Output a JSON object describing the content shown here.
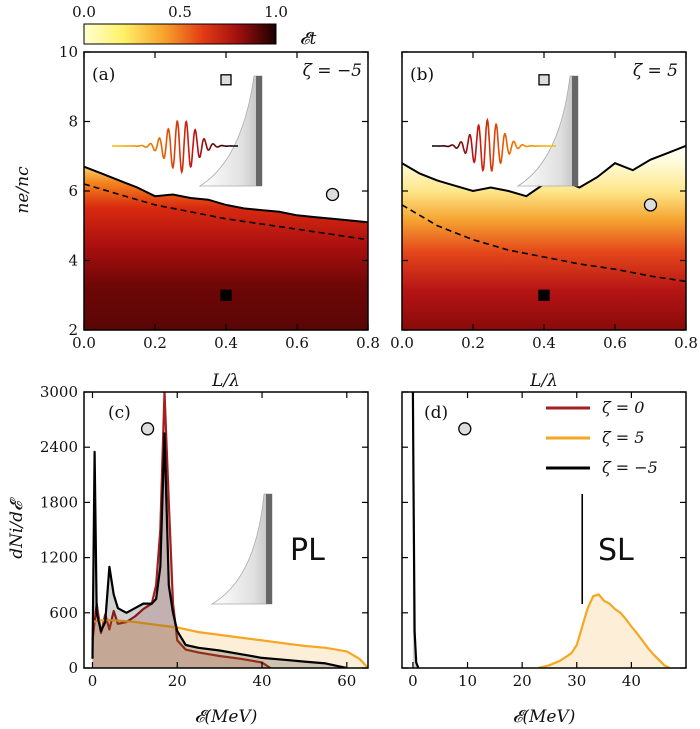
{
  "chart_data": [
    {
      "type": "heatmap",
      "panel_label": "(a)",
      "annotation": "ζ = −5",
      "colorbar": {
        "label": "𝓔t",
        "ticks": [
          "0.0",
          "0.5",
          "1.0"
        ],
        "range": [
          0,
          1
        ]
      },
      "xlabel": "L/λ",
      "ylabel": "ne/nc",
      "xlim": [
        0,
        0.8
      ],
      "ylim": [
        2,
        10
      ],
      "xticks": [
        "0.0",
        "0.2",
        "0.4",
        "0.6",
        "0.8"
      ],
      "yticks": [
        "2",
        "4",
        "6",
        "8",
        "10"
      ],
      "solid_contour": {
        "x": [
          0,
          0.05,
          0.1,
          0.15,
          0.2,
          0.25,
          0.3,
          0.35,
          0.4,
          0.45,
          0.5,
          0.55,
          0.6,
          0.65,
          0.7,
          0.75,
          0.8
        ],
        "y": [
          6.7,
          6.5,
          6.3,
          6.1,
          5.85,
          5.9,
          5.8,
          5.75,
          5.6,
          5.5,
          5.45,
          5.4,
          5.3,
          5.25,
          5.2,
          5.15,
          5.1
        ]
      },
      "dashed_contour": {
        "x": [
          0,
          0.1,
          0.2,
          0.3,
          0.4,
          0.5,
          0.6,
          0.7,
          0.8
        ],
        "y": [
          6.2,
          5.9,
          5.6,
          5.4,
          5.2,
          5.05,
          4.9,
          4.75,
          4.6
        ]
      },
      "markers": [
        {
          "shape": "square",
          "fill": "#dddddd",
          "x": 0.4,
          "y": 9.2
        },
        {
          "shape": "circle",
          "fill": "#dddddd",
          "x": 0.7,
          "y": 5.9
        },
        {
          "shape": "square",
          "fill": "#000000",
          "x": 0.4,
          "y": 3.0
        }
      ]
    },
    {
      "type": "heatmap",
      "panel_label": "(b)",
      "annotation": "ζ = 5",
      "xlabel": "L/λ",
      "xlim": [
        0,
        0.8
      ],
      "ylim": [
        2,
        10
      ],
      "xticks": [
        "0.0",
        "0.2",
        "0.4",
        "0.6",
        "0.8"
      ],
      "solid_contour": {
        "x": [
          0,
          0.05,
          0.1,
          0.15,
          0.2,
          0.25,
          0.3,
          0.35,
          0.4,
          0.45,
          0.5,
          0.55,
          0.6,
          0.65,
          0.7,
          0.75,
          0.8
        ],
        "y": [
          6.8,
          6.5,
          6.3,
          6.15,
          6.0,
          6.1,
          6.0,
          5.85,
          6.2,
          6.3,
          6.1,
          6.4,
          6.8,
          6.6,
          6.9,
          7.1,
          7.3
        ]
      },
      "dashed_contour": {
        "x": [
          0,
          0.1,
          0.2,
          0.3,
          0.4,
          0.5,
          0.6,
          0.7,
          0.8
        ],
        "y": [
          5.6,
          5.0,
          4.6,
          4.3,
          4.1,
          3.9,
          3.75,
          3.55,
          3.4
        ]
      },
      "markers": [
        {
          "shape": "square",
          "fill": "#dddddd",
          "x": 0.4,
          "y": 9.2
        },
        {
          "shape": "circle",
          "fill": "#dddddd",
          "x": 0.7,
          "y": 5.6
        },
        {
          "shape": "square",
          "fill": "#000000",
          "x": 0.4,
          "y": 3.0
        }
      ]
    },
    {
      "type": "line",
      "panel_label": "(c)",
      "annotation": "PL",
      "xlabel": "𝓔(MeV)",
      "ylabel": "dNi/d𝓔",
      "xlim": [
        -2,
        65
      ],
      "ylim": [
        0,
        3000
      ],
      "xticks": [
        "0",
        "20",
        "40",
        "60"
      ],
      "yticks": [
        "0",
        "600",
        "1200",
        "1800",
        "2400",
        "3000"
      ],
      "marker": {
        "shape": "circle",
        "fill": "#dddddd",
        "x": 13,
        "y": 2600
      },
      "series": [
        {
          "name": "ζ = 0",
          "color": "#a32020",
          "x": [
            0,
            1,
            2,
            3,
            4,
            5,
            6,
            8,
            10,
            12,
            14,
            15,
            16,
            17,
            18,
            19,
            20,
            22,
            25,
            30,
            35,
            40,
            42
          ],
          "values": [
            300,
            700,
            380,
            580,
            420,
            620,
            480,
            500,
            560,
            640,
            700,
            900,
            1500,
            3000,
            1800,
            700,
            300,
            200,
            170,
            130,
            100,
            60,
            0
          ]
        },
        {
          "name": "ζ = 5",
          "color": "#f5a623",
          "x": [
            0,
            2,
            5,
            10,
            15,
            20,
            25,
            30,
            35,
            40,
            45,
            50,
            55,
            60,
            63,
            65
          ],
          "values": [
            500,
            520,
            520,
            500,
            470,
            440,
            390,
            360,
            330,
            300,
            270,
            240,
            220,
            180,
            100,
            0
          ]
        },
        {
          "name": "ζ = −5",
          "color": "#000000",
          "x": [
            0,
            0.5,
            1,
            2,
            3,
            4,
            5,
            6,
            8,
            10,
            12,
            14,
            15,
            16,
            17,
            18,
            19,
            20,
            22,
            25,
            30,
            35,
            40,
            45,
            50,
            55,
            58,
            60
          ],
          "values": [
            100,
            2350,
            600,
            400,
            500,
            1100,
            800,
            650,
            600,
            650,
            700,
            700,
            750,
            1100,
            2550,
            900,
            600,
            400,
            250,
            220,
            190,
            150,
            110,
            90,
            70,
            50,
            20,
            0
          ]
        }
      ]
    },
    {
      "type": "line",
      "panel_label": "(d)",
      "annotation": "SL",
      "xlabel": "𝓔(MeV)",
      "xlim": [
        -2,
        50
      ],
      "ylim": [
        0,
        3000
      ],
      "xticks": [
        "0",
        "10",
        "20",
        "30",
        "40"
      ],
      "marker": {
        "shape": "circle",
        "fill": "#dddddd",
        "x": 9.5,
        "y": 2600
      },
      "vline_x": 31,
      "legend": {
        "placement": "top-right"
      },
      "series": [
        {
          "name": "ζ = 0",
          "color": "#a32020",
          "x": [],
          "values": []
        },
        {
          "name": "ζ = 5",
          "color": "#f5a623",
          "x": [
            23,
            25,
            27,
            29,
            30,
            31,
            32,
            33,
            34,
            35,
            36,
            37,
            38,
            39,
            40,
            41,
            42,
            43,
            44,
            45,
            46,
            47
          ],
          "values": [
            0,
            30,
            80,
            160,
            250,
            450,
            650,
            780,
            800,
            730,
            700,
            640,
            600,
            530,
            450,
            380,
            300,
            220,
            150,
            90,
            30,
            0
          ]
        },
        {
          "name": "ζ = −5",
          "color": "#000000",
          "x": [
            0,
            0.1,
            0.3,
            0.6,
            1
          ],
          "values": [
            3000,
            2000,
            400,
            60,
            0
          ]
        }
      ]
    }
  ]
}
